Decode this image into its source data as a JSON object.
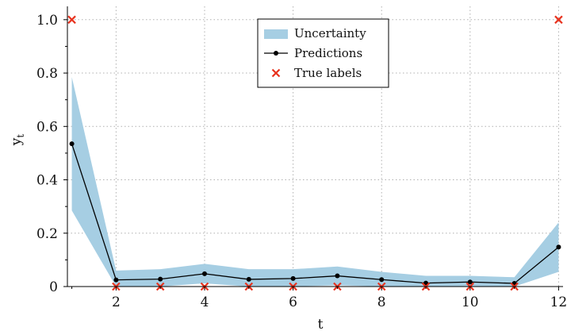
{
  "chart_data": {
    "type": "line",
    "xlabel": "t",
    "ylabel_main": "y",
    "ylabel_sub": "t",
    "xlim": [
      0.9,
      12.1
    ],
    "ylim": [
      0,
      1.05
    ],
    "xticks": [
      2,
      4,
      6,
      8,
      10,
      12
    ],
    "xtick_labels": [
      "2",
      "4",
      "6",
      "8",
      "10",
      "12"
    ],
    "yticks": [
      0,
      0.2,
      0.4,
      0.6,
      0.8,
      1.0
    ],
    "ytick_labels": [
      "0",
      "0.2",
      "0.4",
      "0.6",
      "0.8",
      "1.0"
    ],
    "grid": true,
    "legend_position": "top-center",
    "legend": {
      "uncertainty_label": "Uncertainty",
      "predictions_label": "Predictions",
      "true_labels_label": "True labels"
    },
    "colors": {
      "uncertainty": "#a6cee3",
      "predictions": "#000000",
      "true_labels": "#e8321e",
      "grid": "#b0b0b0"
    },
    "x": [
      1,
      2,
      3,
      4,
      5,
      6,
      7,
      8,
      9,
      10,
      11,
      12
    ],
    "predictions": [
      0.535,
      0.025,
      0.028,
      0.048,
      0.027,
      0.03,
      0.04,
      0.026,
      0.013,
      0.017,
      0.012,
      0.148
    ],
    "uncertainty_upper": [
      0.785,
      0.06,
      0.065,
      0.085,
      0.065,
      0.065,
      0.075,
      0.055,
      0.04,
      0.04,
      0.035,
      0.24
    ],
    "uncertainty_lower": [
      0.285,
      0.0,
      0.0,
      0.012,
      0.0,
      0.0,
      0.005,
      0.0,
      0.0,
      0.0,
      0.0,
      0.055
    ],
    "true_labels": [
      1,
      0,
      0,
      0,
      0,
      0,
      0,
      0,
      0,
      0,
      0,
      1
    ]
  }
}
